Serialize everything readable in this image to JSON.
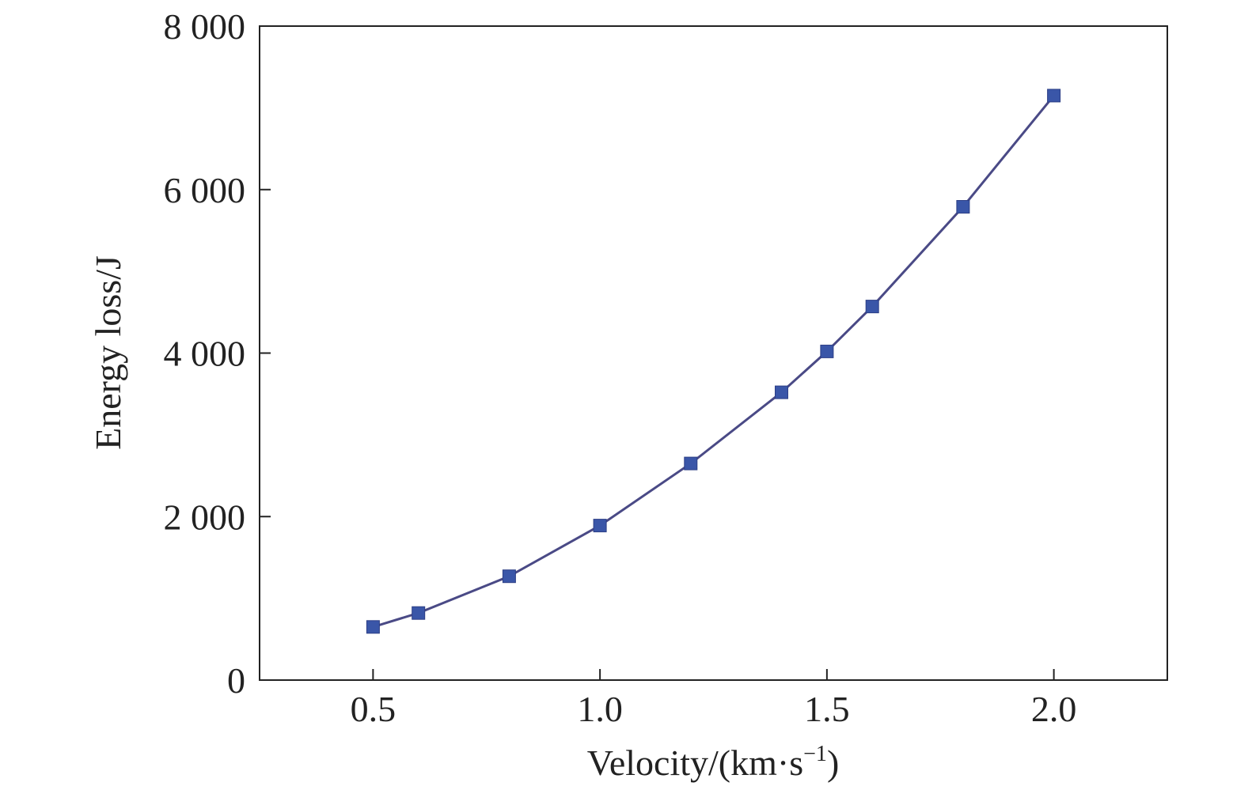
{
  "chart_data": {
    "type": "line",
    "title": "",
    "xlabel": "Velocity/(km·s",
    "xlabel_sup": "−1",
    "xlabel_close": ")",
    "ylabel": "Energy loss/J",
    "xlim": [
      0.25,
      2.25
    ],
    "ylim": [
      0,
      8000
    ],
    "xticks": [
      0.5,
      1.0,
      1.5,
      2.0
    ],
    "xtick_labels": [
      "0.5",
      "1.0",
      "1.5",
      "2.0"
    ],
    "yticks": [
      0,
      2000,
      4000,
      6000,
      8000
    ],
    "ytick_labels": [
      "0",
      "2 000",
      "4 000",
      "6 000",
      "8 000"
    ],
    "grid": false,
    "marker": "square",
    "colors": {
      "line": "#4a4a86",
      "marker": "#3a56a8",
      "axis": "#222222"
    },
    "series": [
      {
        "x": [
          0.5,
          0.6,
          0.8,
          1.0,
          1.2,
          1.4,
          1.5,
          1.6,
          1.8,
          2.0
        ],
        "y": [
          650,
          820,
          1270,
          1890,
          2650,
          3520,
          4020,
          4570,
          5790,
          7150
        ]
      }
    ]
  }
}
